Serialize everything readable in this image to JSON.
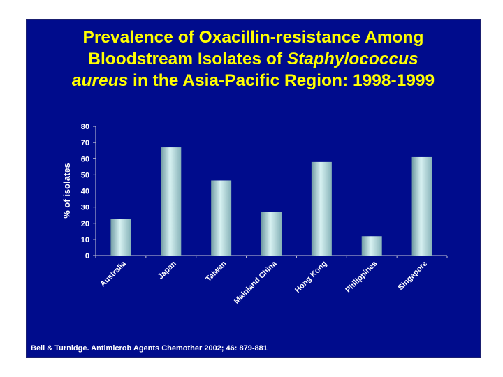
{
  "slide": {
    "background": "#000c8c",
    "title_color": "#ffff00",
    "title_line1": "Prevalence of Oxacillin-resistance Among",
    "title_line2_prefix": "Bloodstream Isolates of ",
    "title_line2_italic": "Staphylococcus",
    "title_line3_italic": "aureus",
    "title_line3_suffix": " in the Asia-Pacific Region: 1998-1999",
    "citation": "Bell & Turnidge. Antimicrob Agents Chemother 2002; 46: 879-881"
  },
  "chart_data": {
    "type": "bar",
    "categories": [
      "Australia",
      "Japan",
      "Taiwan",
      "Mainland China",
      "Hong Kong",
      "Philippines",
      "Singapore"
    ],
    "values": [
      22.5,
      67,
      46.5,
      27,
      58,
      12,
      61
    ],
    "xlabel": "",
    "ylabel": "% of isolates",
    "ylim": [
      0,
      80
    ],
    "yticks": [
      0,
      10,
      20,
      30,
      40,
      50,
      60,
      70,
      80
    ],
    "grid": false,
    "legend": "none",
    "bar_color": "#a9d6d6"
  }
}
